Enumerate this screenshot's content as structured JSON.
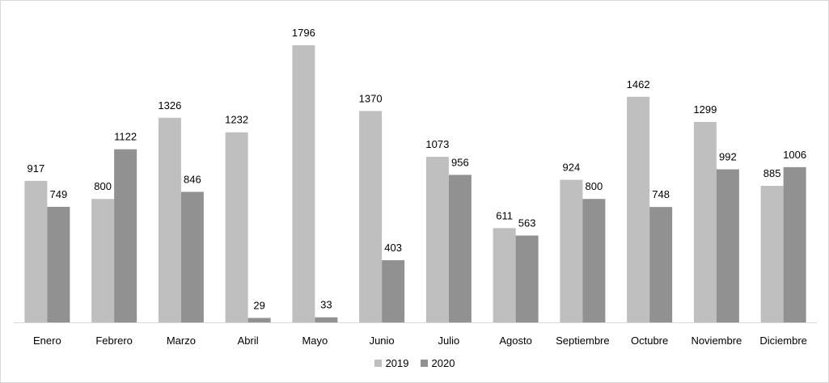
{
  "chart_data": {
    "type": "bar",
    "title": "",
    "xlabel": "",
    "ylabel": "",
    "categories": [
      "Enero",
      "Febrero",
      "Marzo",
      "Abril",
      "Mayo",
      "Junio",
      "Julio",
      "Agosto",
      "Septiembre",
      "Octubre",
      "Noviembre",
      "Diciembre"
    ],
    "series": [
      {
        "name": "2019",
        "color": "#bfbfbf",
        "values": [
          917,
          800,
          1326,
          1232,
          1796,
          1370,
          1073,
          611,
          924,
          1462,
          1299,
          885
        ]
      },
      {
        "name": "2020",
        "color": "#919191",
        "values": [
          749,
          1122,
          846,
          29,
          33,
          403,
          956,
          563,
          800,
          748,
          992,
          1006
        ]
      }
    ],
    "ylim": [
      0,
      1796
    ],
    "grid": false,
    "data_labels": true,
    "legend_position": "bottom"
  }
}
